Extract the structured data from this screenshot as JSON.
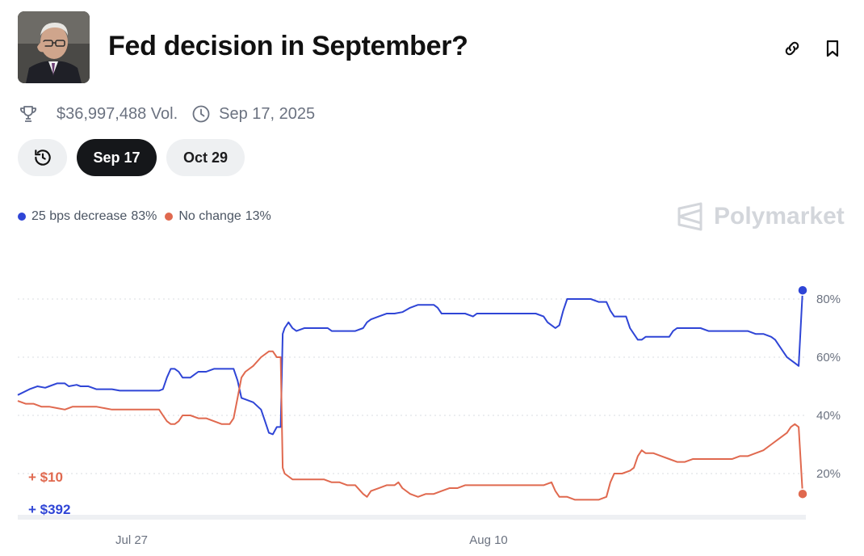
{
  "header": {
    "title": "Fed decision in September?",
    "avatar_icon": "person-portrait-icon",
    "link_icon": "link-icon",
    "bookmark_icon": "bookmark-icon"
  },
  "meta": {
    "volume": "$36,997,488 Vol.",
    "date": "Sep 17, 2025",
    "volume_icon": "trophy-icon",
    "date_icon": "clock-icon"
  },
  "tabs": {
    "history_icon": "history-icon",
    "items": [
      {
        "label": "Sep 17",
        "active": true
      },
      {
        "label": "Oct 29",
        "active": false
      }
    ]
  },
  "brand": "Polymarket",
  "colors": {
    "series_a": "#2f45d6",
    "series_b": "#e0694f",
    "grid": "#d9dce1",
    "tab_active_bg": "#15171a",
    "tab_bg": "#eef0f2"
  },
  "chart_data": {
    "type": "line",
    "ylim": [
      0,
      90
    ],
    "yticks": [
      20,
      40,
      60,
      80
    ],
    "ytick_labels": [
      "20%",
      "40%",
      "60%",
      "80%"
    ],
    "xtick_labels": [
      "Jul 27",
      "Aug 10"
    ],
    "legend_placement": "top-left",
    "grid": true,
    "annotations": [
      "+ $10",
      "+ $392"
    ],
    "series": [
      {
        "name": "25 bps decrease",
        "legend_value": "83%",
        "color": "#2f45d6",
        "points": [
          [
            0,
            47
          ],
          [
            3,
            49
          ],
          [
            5,
            50
          ],
          [
            7,
            49.5
          ],
          [
            8,
            50
          ],
          [
            10,
            51
          ],
          [
            12,
            51
          ],
          [
            13,
            50
          ],
          [
            15,
            50.5
          ],
          [
            16,
            50
          ],
          [
            18,
            50
          ],
          [
            20,
            49
          ],
          [
            22,
            49
          ],
          [
            24,
            49
          ],
          [
            26,
            48.5
          ],
          [
            28,
            48.5
          ],
          [
            30,
            48.5
          ],
          [
            32,
            48.5
          ],
          [
            34,
            48.5
          ],
          [
            36,
            48.5
          ],
          [
            37,
            49
          ],
          [
            38,
            53
          ],
          [
            39,
            56
          ],
          [
            40,
            56
          ],
          [
            41,
            55
          ],
          [
            42,
            53
          ],
          [
            44,
            53
          ],
          [
            45,
            54
          ],
          [
            46,
            55
          ],
          [
            48,
            55
          ],
          [
            49,
            55.5
          ],
          [
            50,
            56
          ],
          [
            52,
            56
          ],
          [
            54,
            56
          ],
          [
            55,
            56
          ],
          [
            56,
            52
          ],
          [
            57,
            46
          ],
          [
            58,
            45.5
          ],
          [
            60,
            44.5
          ],
          [
            62,
            42
          ],
          [
            63,
            38
          ],
          [
            64,
            34
          ],
          [
            65,
            33.5
          ],
          [
            66,
            36
          ],
          [
            67,
            36
          ],
          [
            67.5,
            68
          ],
          [
            68,
            70
          ],
          [
            69,
            72
          ],
          [
            70,
            70
          ],
          [
            71,
            69
          ],
          [
            73,
            70
          ],
          [
            75,
            70
          ],
          [
            77,
            70
          ],
          [
            79,
            70
          ],
          [
            80,
            69
          ],
          [
            82,
            69
          ],
          [
            84,
            69
          ],
          [
            86,
            69
          ],
          [
            88,
            70
          ],
          [
            89,
            72
          ],
          [
            90,
            73
          ],
          [
            92,
            74
          ],
          [
            94,
            75
          ],
          [
            96,
            75
          ],
          [
            98,
            75.5
          ],
          [
            100,
            77
          ],
          [
            102,
            78
          ],
          [
            104,
            78
          ],
          [
            106,
            78
          ],
          [
            107,
            77
          ],
          [
            108,
            75
          ],
          [
            110,
            75
          ],
          [
            112,
            75
          ],
          [
            114,
            75
          ],
          [
            116,
            74
          ],
          [
            117,
            75
          ],
          [
            118,
            75
          ],
          [
            120,
            75
          ],
          [
            124,
            75
          ],
          [
            128,
            75
          ],
          [
            132,
            75
          ],
          [
            134,
            74
          ],
          [
            135,
            72
          ],
          [
            136,
            71
          ],
          [
            137,
            70
          ],
          [
            138,
            71
          ],
          [
            139,
            76
          ],
          [
            140,
            80
          ],
          [
            142,
            80
          ],
          [
            144,
            80
          ],
          [
            146,
            80
          ],
          [
            148,
            79
          ],
          [
            150,
            79
          ],
          [
            151,
            76
          ],
          [
            152,
            74
          ],
          [
            154,
            74
          ],
          [
            155,
            74
          ],
          [
            156,
            70
          ],
          [
            157,
            68
          ],
          [
            158,
            66
          ],
          [
            159,
            66
          ],
          [
            160,
            67
          ],
          [
            162,
            67
          ],
          [
            164,
            67
          ],
          [
            166,
            67
          ],
          [
            167,
            69
          ],
          [
            168,
            70
          ],
          [
            170,
            70
          ],
          [
            172,
            70
          ],
          [
            174,
            70
          ],
          [
            176,
            69
          ],
          [
            178,
            69
          ],
          [
            180,
            69
          ],
          [
            182,
            69
          ],
          [
            184,
            69
          ],
          [
            186,
            69
          ],
          [
            188,
            68
          ],
          [
            190,
            68
          ],
          [
            192,
            67
          ],
          [
            193,
            66
          ],
          [
            194,
            64
          ],
          [
            195,
            62
          ],
          [
            196,
            60
          ],
          [
            197,
            59
          ],
          [
            198,
            58
          ],
          [
            199,
            57
          ],
          [
            200,
            83
          ]
        ]
      },
      {
        "name": "No change",
        "legend_value": "13%",
        "color": "#e0694f",
        "points": [
          [
            0,
            45
          ],
          [
            2,
            44
          ],
          [
            4,
            44
          ],
          [
            6,
            43
          ],
          [
            8,
            43
          ],
          [
            10,
            42.5
          ],
          [
            12,
            42
          ],
          [
            14,
            43
          ],
          [
            16,
            43
          ],
          [
            18,
            43
          ],
          [
            20,
            43
          ],
          [
            22,
            42.5
          ],
          [
            24,
            42
          ],
          [
            26,
            42
          ],
          [
            28,
            42
          ],
          [
            30,
            42
          ],
          [
            32,
            42
          ],
          [
            34,
            42
          ],
          [
            36,
            42
          ],
          [
            37,
            40
          ],
          [
            38,
            38
          ],
          [
            39,
            37
          ],
          [
            40,
            37
          ],
          [
            41,
            38
          ],
          [
            42,
            40
          ],
          [
            44,
            40
          ],
          [
            46,
            39
          ],
          [
            48,
            39
          ],
          [
            50,
            38
          ],
          [
            52,
            37
          ],
          [
            54,
            37
          ],
          [
            55,
            39
          ],
          [
            56,
            46
          ],
          [
            57,
            53
          ],
          [
            58,
            55
          ],
          [
            60,
            57
          ],
          [
            62,
            60
          ],
          [
            64,
            62
          ],
          [
            65,
            62
          ],
          [
            66,
            60
          ],
          [
            67,
            60
          ],
          [
            67.5,
            22
          ],
          [
            68,
            20
          ],
          [
            70,
            18
          ],
          [
            72,
            18
          ],
          [
            74,
            18
          ],
          [
            76,
            18
          ],
          [
            78,
            18
          ],
          [
            80,
            17
          ],
          [
            82,
            17
          ],
          [
            84,
            16
          ],
          [
            86,
            16
          ],
          [
            88,
            13
          ],
          [
            89,
            12
          ],
          [
            90,
            14
          ],
          [
            92,
            15
          ],
          [
            94,
            16
          ],
          [
            96,
            16
          ],
          [
            97,
            17
          ],
          [
            98,
            15
          ],
          [
            100,
            13
          ],
          [
            102,
            12
          ],
          [
            104,
            13
          ],
          [
            106,
            13
          ],
          [
            108,
            14
          ],
          [
            110,
            15
          ],
          [
            112,
            15
          ],
          [
            114,
            16
          ],
          [
            118,
            16
          ],
          [
            122,
            16
          ],
          [
            126,
            16
          ],
          [
            130,
            16
          ],
          [
            132,
            16
          ],
          [
            134,
            16
          ],
          [
            136,
            17
          ],
          [
            137,
            14
          ],
          [
            138,
            12
          ],
          [
            140,
            12
          ],
          [
            142,
            11
          ],
          [
            144,
            11
          ],
          [
            146,
            11
          ],
          [
            148,
            11
          ],
          [
            150,
            12
          ],
          [
            151,
            17
          ],
          [
            152,
            20
          ],
          [
            154,
            20
          ],
          [
            156,
            21
          ],
          [
            157,
            22
          ],
          [
            158,
            26
          ],
          [
            159,
            28
          ],
          [
            160,
            27
          ],
          [
            162,
            27
          ],
          [
            164,
            26
          ],
          [
            166,
            25
          ],
          [
            168,
            24
          ],
          [
            170,
            24
          ],
          [
            172,
            25
          ],
          [
            174,
            25
          ],
          [
            176,
            25
          ],
          [
            178,
            25
          ],
          [
            180,
            25
          ],
          [
            182,
            25
          ],
          [
            184,
            26
          ],
          [
            186,
            26
          ],
          [
            188,
            27
          ],
          [
            190,
            28
          ],
          [
            192,
            30
          ],
          [
            194,
            32
          ],
          [
            195,
            33
          ],
          [
            196,
            34
          ],
          [
            197,
            36
          ],
          [
            198,
            37
          ],
          [
            199,
            36
          ],
          [
            200,
            13
          ]
        ]
      }
    ]
  }
}
